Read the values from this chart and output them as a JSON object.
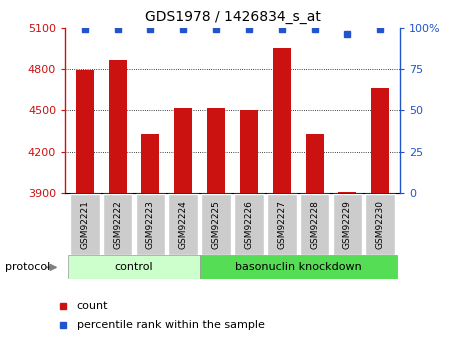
{
  "title": "GDS1978 / 1426834_s_at",
  "samples": [
    "GSM92221",
    "GSM92222",
    "GSM92223",
    "GSM92224",
    "GSM92225",
    "GSM92226",
    "GSM92227",
    "GSM92228",
    "GSM92229",
    "GSM92230"
  ],
  "counts": [
    4790,
    4865,
    4330,
    4520,
    4520,
    4500,
    4950,
    4330,
    3910,
    4660
  ],
  "percentile_ranks": [
    99,
    99,
    99,
    99,
    99,
    99,
    99,
    99,
    96,
    99
  ],
  "ylim_left": [
    3900,
    5100
  ],
  "ylim_right": [
    0,
    100
  ],
  "yticks_left": [
    3900,
    4200,
    4500,
    4800,
    5100
  ],
  "yticks_right": [
    0,
    25,
    50,
    75,
    100
  ],
  "bar_color": "#cc1111",
  "dot_color": "#2255cc",
  "control_label": "control",
  "knockdown_label": "basonuclin knockdown",
  "protocol_label": "protocol",
  "legend_count_label": "count",
  "legend_pct_label": "percentile rank within the sample",
  "control_bg": "#ccffcc",
  "knockdown_bg": "#55dd55",
  "tick_label_bg": "#cccccc",
  "n_control": 4,
  "n_knockdown": 6
}
